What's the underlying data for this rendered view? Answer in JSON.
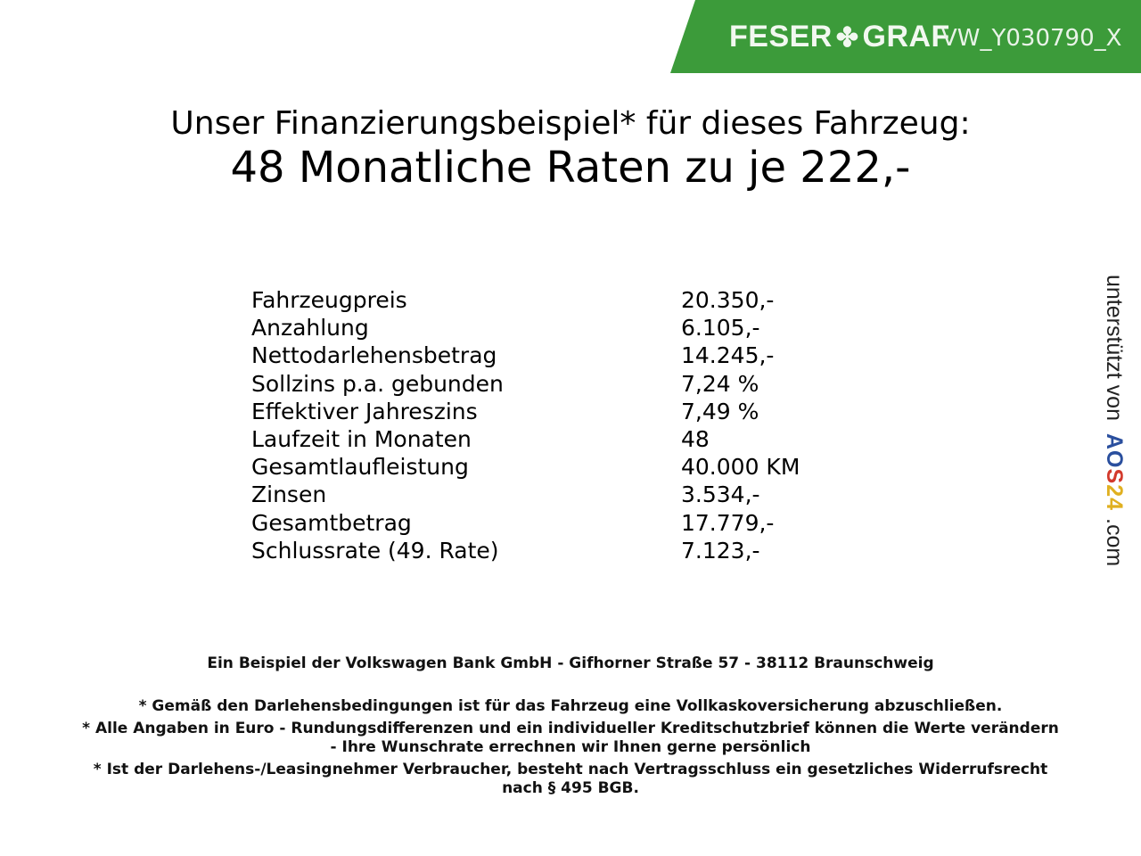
{
  "brand": {
    "logo_text_left": "FESER",
    "logo_text_right": "GRAF",
    "watermark_code": "VW_Y030790_X",
    "banner_color": "#3c9b3a"
  },
  "header": {
    "title": "Unser Finanzierungsbeispiel* für dieses Fahrzeug:",
    "subtitle": "48 Monatliche Raten zu je 222,-"
  },
  "table": [
    {
      "label": "Fahrzeugpreis",
      "value": "20.350,-"
    },
    {
      "label": "Anzahlung",
      "value": "6.105,-"
    },
    {
      "label": "Nettodarlehensbetrag",
      "value": "14.245,-"
    },
    {
      "label": "Sollzins p.a. gebunden",
      "value": "7,24 %"
    },
    {
      "label": "Effektiver Jahreszins",
      "value": "7,49 %"
    },
    {
      "label": "Laufzeit in Monaten",
      "value": "48"
    },
    {
      "label": "Gesamtlaufleistung",
      "value": "40.000 KM"
    },
    {
      "label": "Zinsen",
      "value": "3.534,-"
    },
    {
      "label": "Gesamtbetrag",
      "value": "17.779,-"
    },
    {
      "label": "Schlussrate (49. Rate)",
      "value": "7.123,-"
    }
  ],
  "sidebar": {
    "supported_by": "unterstützt von",
    "aos_letters": [
      "A",
      "O",
      "S",
      "2",
      "4"
    ],
    "aos_colors": [
      "#2a4f9e",
      "#2a4f9e",
      "#d33a2c",
      "#e0b020",
      "#e0b020"
    ],
    "domain": ".com"
  },
  "footer": {
    "bank": "Ein Beispiel der Volkswagen Bank GmbH - Gifhorner Straße 57 - 38112 Braunschweig",
    "note1": "* Gemäß den Darlehensbedingungen ist für das Fahrzeug eine Vollkaskoversicherung abzuschließen.",
    "note2a": "* Alle Angaben in Euro - Rundungsdifferenzen und ein individueller Kreditschutzbrief können die Werte verändern",
    "note2b": "- Ihre Wunschrate errechnen wir Ihnen gerne persönlich",
    "note3a": "* Ist der Darlehens-/Leasingnehmer Verbraucher, besteht nach Vertragsschluss ein gesetzliches Widerrufsrecht",
    "note3b": "nach § 495 BGB."
  }
}
